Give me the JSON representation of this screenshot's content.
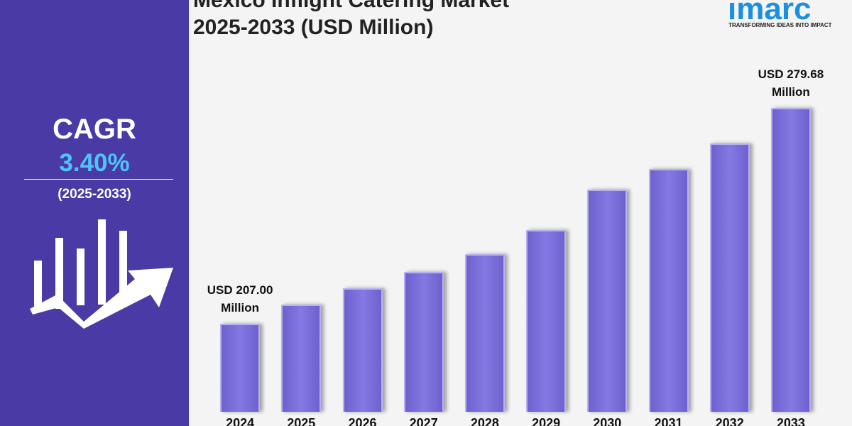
{
  "side": {
    "cagr_label": "CAGR",
    "cagr": "3.40%",
    "period": "(2025-2033)"
  },
  "logo": {
    "name": "imarc",
    "tagline": "TRANSFORMING IDEAS INTO IMPACT"
  },
  "chart_data": {
    "type": "bar",
    "title": "Mexico Inflight Catering Market",
    "subtitle": "2025-2033 (USD Million)",
    "categories": [
      "2024",
      "2025",
      "2026",
      "2027",
      "2028",
      "2029",
      "2030",
      "2031",
      "2032",
      "2033"
    ],
    "values": [
      207.0,
      213.5,
      219.0,
      224.5,
      230.4,
      238.6,
      252.2,
      259.2,
      267.8,
      279.68
    ],
    "value_labels": [
      "USD 207.00 Million",
      null,
      null,
      null,
      null,
      null,
      null,
      null,
      null,
      "USD 279.68 Million"
    ],
    "color": "#7b6fd8"
  }
}
